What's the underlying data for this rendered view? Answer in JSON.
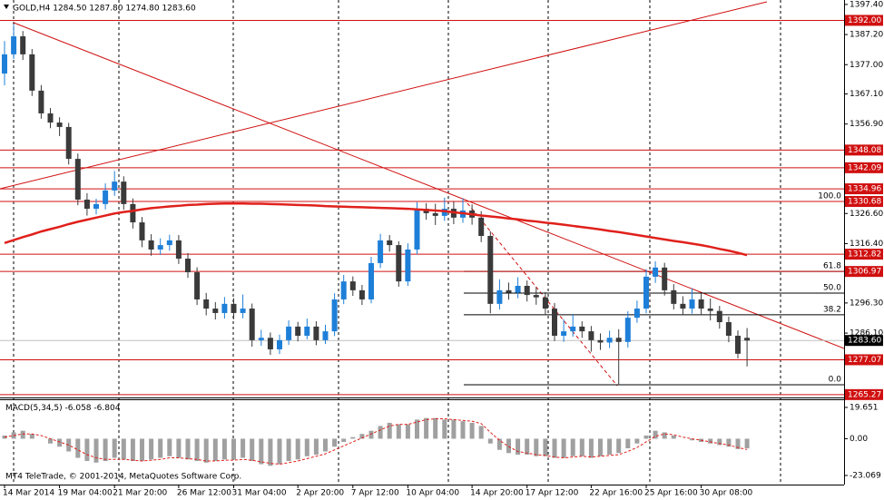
{
  "chart_data": {
    "type": "candlestick",
    "header": "GOLD,H4  1284.50 1287.80 1274.80 1283.60",
    "categories": [
      "14 Mar 2014",
      null,
      null,
      null,
      null,
      null,
      "19 Mar 04:00",
      null,
      null,
      null,
      null,
      null,
      "21 Mar 20:00",
      null,
      null,
      null,
      null,
      null,
      null,
      "26 Mar 12:00",
      null,
      null,
      null,
      null,
      null,
      "31 Mar 04:00",
      null,
      null,
      null,
      null,
      null,
      null,
      "2 Apr 20:00",
      null,
      null,
      null,
      null,
      null,
      "7 Apr 12:00",
      null,
      null,
      null,
      null,
      null,
      "10 Apr 04:00",
      null,
      null,
      null,
      null,
      null,
      null,
      "14 Apr 20:00",
      null,
      null,
      null,
      null,
      null,
      "17 Apr 12:00",
      null,
      null,
      null,
      null,
      null,
      null,
      "22 Apr 16:00",
      null,
      null,
      null,
      null,
      null,
      "25 Apr 16:00",
      null,
      null,
      null,
      null,
      null,
      "30 Apr 08:00",
      null,
      null,
      null,
      null,
      null
    ],
    "open": [
      1374.0,
      1380.5,
      1386.6,
      1380.5,
      1368.2,
      1360.5,
      1357.4,
      1355.9,
      1345.1,
      1331.3,
      1328.2,
      1329.8,
      1334.4,
      1337.4,
      1329.8,
      1323.6,
      1317.5,
      1314.4,
      1315.9,
      1317.5,
      1311.3,
      1306.7,
      1297.5,
      1294.4,
      1292.9,
      1296.0,
      1292.9,
      1294.4,
      1283.7,
      1284.5,
      1280.6,
      1283.7,
      1288.3,
      1285.2,
      1288.3,
      1283.7,
      1286.7,
      1297.5,
      1303.6,
      1300.6,
      1297.5,
      1309.8,
      1317.5,
      1315.9,
      1303.6,
      1314.4,
      1328.2,
      1326.7,
      1325.8,
      1328.2,
      1325.2,
      1327.6,
      1325.2,
      1319.0,
      1296.0,
      1300.6,
      1299.8,
      1302.1,
      1299.0,
      1298.2,
      1294.4,
      1285.2,
      1286.7,
      1288.3,
      1286.7,
      1283.7,
      1282.9,
      1284.5,
      1283.1,
      1291.3,
      1294.4,
      1305.2,
      1308.3,
      1300.6,
      1296.0,
      1294.4,
      1297.5,
      1294.4,
      1293.6,
      1289.8,
      1285.2,
      1284.5
    ],
    "high": [
      1385.0,
      1390.5,
      1388.4,
      1382.3,
      1370.1,
      1362.3,
      1359.2,
      1357.3,
      1346.9,
      1333.5,
      1331.6,
      1336.8,
      1341.0,
      1339.2,
      1331.7,
      1325.4,
      1319.6,
      1318.2,
      1319.4,
      1319.3,
      1313.2,
      1308.4,
      1299.7,
      1296.6,
      1298.3,
      1297.9,
      1299.2,
      1296.1,
      1287.2,
      1286.3,
      1285.6,
      1290.4,
      1289.9,
      1291.0,
      1290.1,
      1288.9,
      1299.6,
      1305.8,
      1305.3,
      1302.4,
      1311.9,
      1319.7,
      1319.3,
      1317.2,
      1316.5,
      1330.4,
      1330.1,
      1329.9,
      1332.0,
      1330.6,
      1331.8,
      1329.7,
      1327.4,
      1320.6,
      1304.3,
      1303.2,
      1305.0,
      1303.9,
      1301.6,
      1300.0,
      1296.3,
      1290.8,
      1292.6,
      1290.1,
      1288.5,
      1286.0,
      1286.9,
      1287.4,
      1293.5,
      1297.1,
      1307.8,
      1310.4,
      1309.9,
      1302.7,
      1298.6,
      1301.3,
      1299.6,
      1297.8,
      1295.3,
      1291.7,
      1287.0,
      1287.8
    ],
    "low": [
      1370.0,
      1378.9,
      1378.6,
      1366.4,
      1358.7,
      1355.5,
      1352.8,
      1343.2,
      1329.4,
      1325.9,
      1326.3,
      1328.0,
      1332.6,
      1327.9,
      1321.5,
      1315.2,
      1312.3,
      1312.6,
      1314.0,
      1309.5,
      1304.8,
      1295.6,
      1292.1,
      1290.7,
      1291.0,
      1290.8,
      1291.1,
      1281.5,
      1281.8,
      1278.7,
      1279.0,
      1282.1,
      1283.3,
      1284.0,
      1282.0,
      1282.4,
      1285.1,
      1295.9,
      1298.7,
      1295.6,
      1296.2,
      1308.1,
      1313.7,
      1301.8,
      1302.1,
      1312.7,
      1324.5,
      1322.7,
      1324.1,
      1323.0,
      1323.4,
      1322.8,
      1316.9,
      1292.8,
      1294.1,
      1297.4,
      1297.9,
      1296.8,
      1295.7,
      1292.5,
      1283.4,
      1283.1,
      1284.9,
      1284.5,
      1279.8,
      1280.4,
      1281.0,
      1268.6,
      1281.2,
      1289.6,
      1292.8,
      1303.1,
      1298.8,
      1294.1,
      1292.2,
      1292.7,
      1292.5,
      1290.4,
      1287.6,
      1283.0,
      1277.5,
      1274.8
    ],
    "close": [
      1380.5,
      1386.6,
      1380.5,
      1368.2,
      1360.5,
      1357.4,
      1355.9,
      1345.1,
      1331.3,
      1328.2,
      1329.8,
      1334.4,
      1337.4,
      1329.8,
      1323.6,
      1317.5,
      1314.4,
      1315.9,
      1317.5,
      1311.3,
      1306.7,
      1297.5,
      1294.4,
      1292.9,
      1296.0,
      1292.9,
      1294.4,
      1283.7,
      1284.5,
      1280.6,
      1283.7,
      1288.3,
      1285.2,
      1288.3,
      1283.7,
      1286.7,
      1297.5,
      1303.6,
      1300.6,
      1297.5,
      1309.8,
      1317.5,
      1315.9,
      1303.6,
      1314.4,
      1328.2,
      1326.7,
      1325.8,
      1328.2,
      1325.2,
      1327.6,
      1325.2,
      1319.0,
      1296.0,
      1300.6,
      1299.8,
      1302.1,
      1299.0,
      1298.2,
      1294.4,
      1285.2,
      1286.7,
      1288.3,
      1286.7,
      1283.7,
      1282.9,
      1284.5,
      1283.1,
      1291.3,
      1294.4,
      1305.2,
      1308.3,
      1300.6,
      1296.0,
      1294.4,
      1297.5,
      1294.4,
      1293.6,
      1289.8,
      1285.2,
      1279.1,
      1283.6
    ],
    "up_color": "#1e7fd8",
    "down_color": "#3a3a3a",
    "ma": {
      "color": "#e0201b",
      "values": [
        1316.6,
        1317.6,
        1318.6,
        1319.5,
        1320.5,
        1321.3,
        1322.1,
        1323.0,
        1323.8,
        1324.5,
        1325.2,
        1325.9,
        1326.6,
        1327.1,
        1327.5,
        1328.0,
        1328.4,
        1328.7,
        1329.0,
        1329.2,
        1329.5,
        1329.6,
        1329.8,
        1329.9,
        1330.0,
        1330.0,
        1330.0,
        1329.9,
        1329.9,
        1329.8,
        1329.7,
        1329.6,
        1329.5,
        1329.4,
        1329.3,
        1329.1,
        1329.0,
        1328.9,
        1328.8,
        1328.7,
        1328.6,
        1328.5,
        1328.4,
        1328.3,
        1328.2,
        1328.0,
        1327.8,
        1327.6,
        1327.4,
        1327.0,
        1326.7,
        1326.3,
        1325.9,
        1325.6,
        1325.3,
        1324.9,
        1324.6,
        1324.2,
        1323.9,
        1323.5,
        1323.2,
        1322.8,
        1322.4,
        1322.0,
        1321.6,
        1321.2,
        1320.7,
        1320.3,
        1319.8,
        1319.3,
        1318.8,
        1318.3,
        1317.8,
        1317.3,
        1316.9,
        1316.4,
        1315.9,
        1315.3,
        1314.6,
        1314.0,
        1313.3,
        1312.5
      ]
    },
    "ylim": [
      1264.3,
      1398.9
    ],
    "yticks": [
      {
        "value": 1397.4,
        "label": "1397.40"
      },
      {
        "value": 1387.2,
        "label": "1387.20"
      },
      {
        "value": 1377.0,
        "label": "1377.00"
      },
      {
        "value": 1367.1,
        "label": "1367.10"
      },
      {
        "value": 1356.9,
        "label": "1356.90"
      },
      {
        "value": 1326.6,
        "label": "1326.60"
      },
      {
        "value": 1316.4,
        "label": "1316.40"
      },
      {
        "value": 1296.3,
        "label": "1296.30"
      },
      {
        "value": 1286.1,
        "label": "1286.10"
      }
    ],
    "levels": [
      {
        "value": 1392.0,
        "label": "1392.00"
      },
      {
        "value": 1348.08,
        "label": "1348.08"
      },
      {
        "value": 1342.09,
        "label": "1342.09"
      },
      {
        "value": 1334.96,
        "label": "1334.96"
      },
      {
        "value": 1330.68,
        "label": "1330.68"
      },
      {
        "value": 1312.82,
        "label": "1312.82"
      },
      {
        "value": 1306.97,
        "label": "1306.97"
      },
      {
        "value": 1277.07,
        "label": "1277.07"
      },
      {
        "value": 1265.27,
        "label": "1265.27"
      }
    ],
    "level_color": "#d01010",
    "current": {
      "value": 1283.6,
      "label": "1283.60"
    },
    "fibo": {
      "high": 1330.68,
      "low": 1268.6,
      "levels": [
        {
          "value": 100,
          "label": "100.0"
        },
        {
          "value": 61.8,
          "label": "61.8"
        },
        {
          "value": 50,
          "label": "50.0"
        },
        {
          "value": 38.2,
          "label": "38.2"
        },
        {
          "value": 0,
          "label": "0.0"
        }
      ]
    },
    "macd": {
      "type": "bar",
      "label": "MACD(5,34,5)",
      "histogram": {
        "color": "#a0a0a0",
        "values": [
          2,
          4,
          5,
          3,
          0,
          -3,
          -5,
          -8,
          -12,
          -14,
          -15,
          -14,
          -12,
          -13,
          -14,
          -14,
          -13,
          -12,
          -11,
          -12,
          -13,
          -14,
          -15,
          -14,
          -13,
          -13,
          -12,
          -14,
          -16,
          -17,
          -16,
          -14,
          -13,
          -11,
          -10,
          -8,
          -5,
          -2,
          1,
          3,
          5,
          8,
          10,
          9,
          9,
          12,
          13,
          13,
          12,
          12,
          11,
          10,
          8,
          -3,
          -7,
          -9,
          -10,
          -10,
          -11,
          -11,
          -12,
          -12,
          -11,
          -11,
          -12,
          -11,
          -10,
          -9,
          -6,
          -3,
          2,
          5,
          4,
          2,
          0,
          -1,
          -2,
          -3,
          -4,
          -5,
          -6.5,
          -6.058
        ]
      },
      "signal": {
        "color": "#e0201b",
        "values": [
          1,
          2,
          3,
          3,
          2,
          0,
          -2,
          -4,
          -7,
          -10,
          -12,
          -13,
          -13,
          -13,
          -13.5,
          -14,
          -13.5,
          -13,
          -12,
          -12,
          -12.5,
          -13,
          -14,
          -14,
          -13.5,
          -13.5,
          -13,
          -13.5,
          -14.5,
          -15.5,
          -16,
          -15,
          -14,
          -12.5,
          -11,
          -9.5,
          -7,
          -4.5,
          -2,
          0.5,
          3,
          5.5,
          8,
          9,
          9,
          10.5,
          12,
          12.5,
          12.5,
          12,
          11.5,
          11,
          9.5,
          4,
          -1,
          -5,
          -8,
          -9,
          -10,
          -10.5,
          -11.5,
          -12,
          -11.5,
          -11,
          -11.5,
          -11,
          -10.5,
          -10,
          -8,
          -5.5,
          -2,
          1.5,
          3,
          2.5,
          1,
          0,
          -1,
          -2,
          -3,
          -4,
          -5.5,
          -6.804
        ]
      },
      "ylim": [
        -28.8,
        24.2
      ],
      "yticks": [
        19.651,
        {
          "value": 0,
          "label": "0.00"
        },
        -23.069
      ]
    },
    "footer": "MT4 TeleTrade, © 2001-2014, MetaQuotes Software Corp."
  }
}
